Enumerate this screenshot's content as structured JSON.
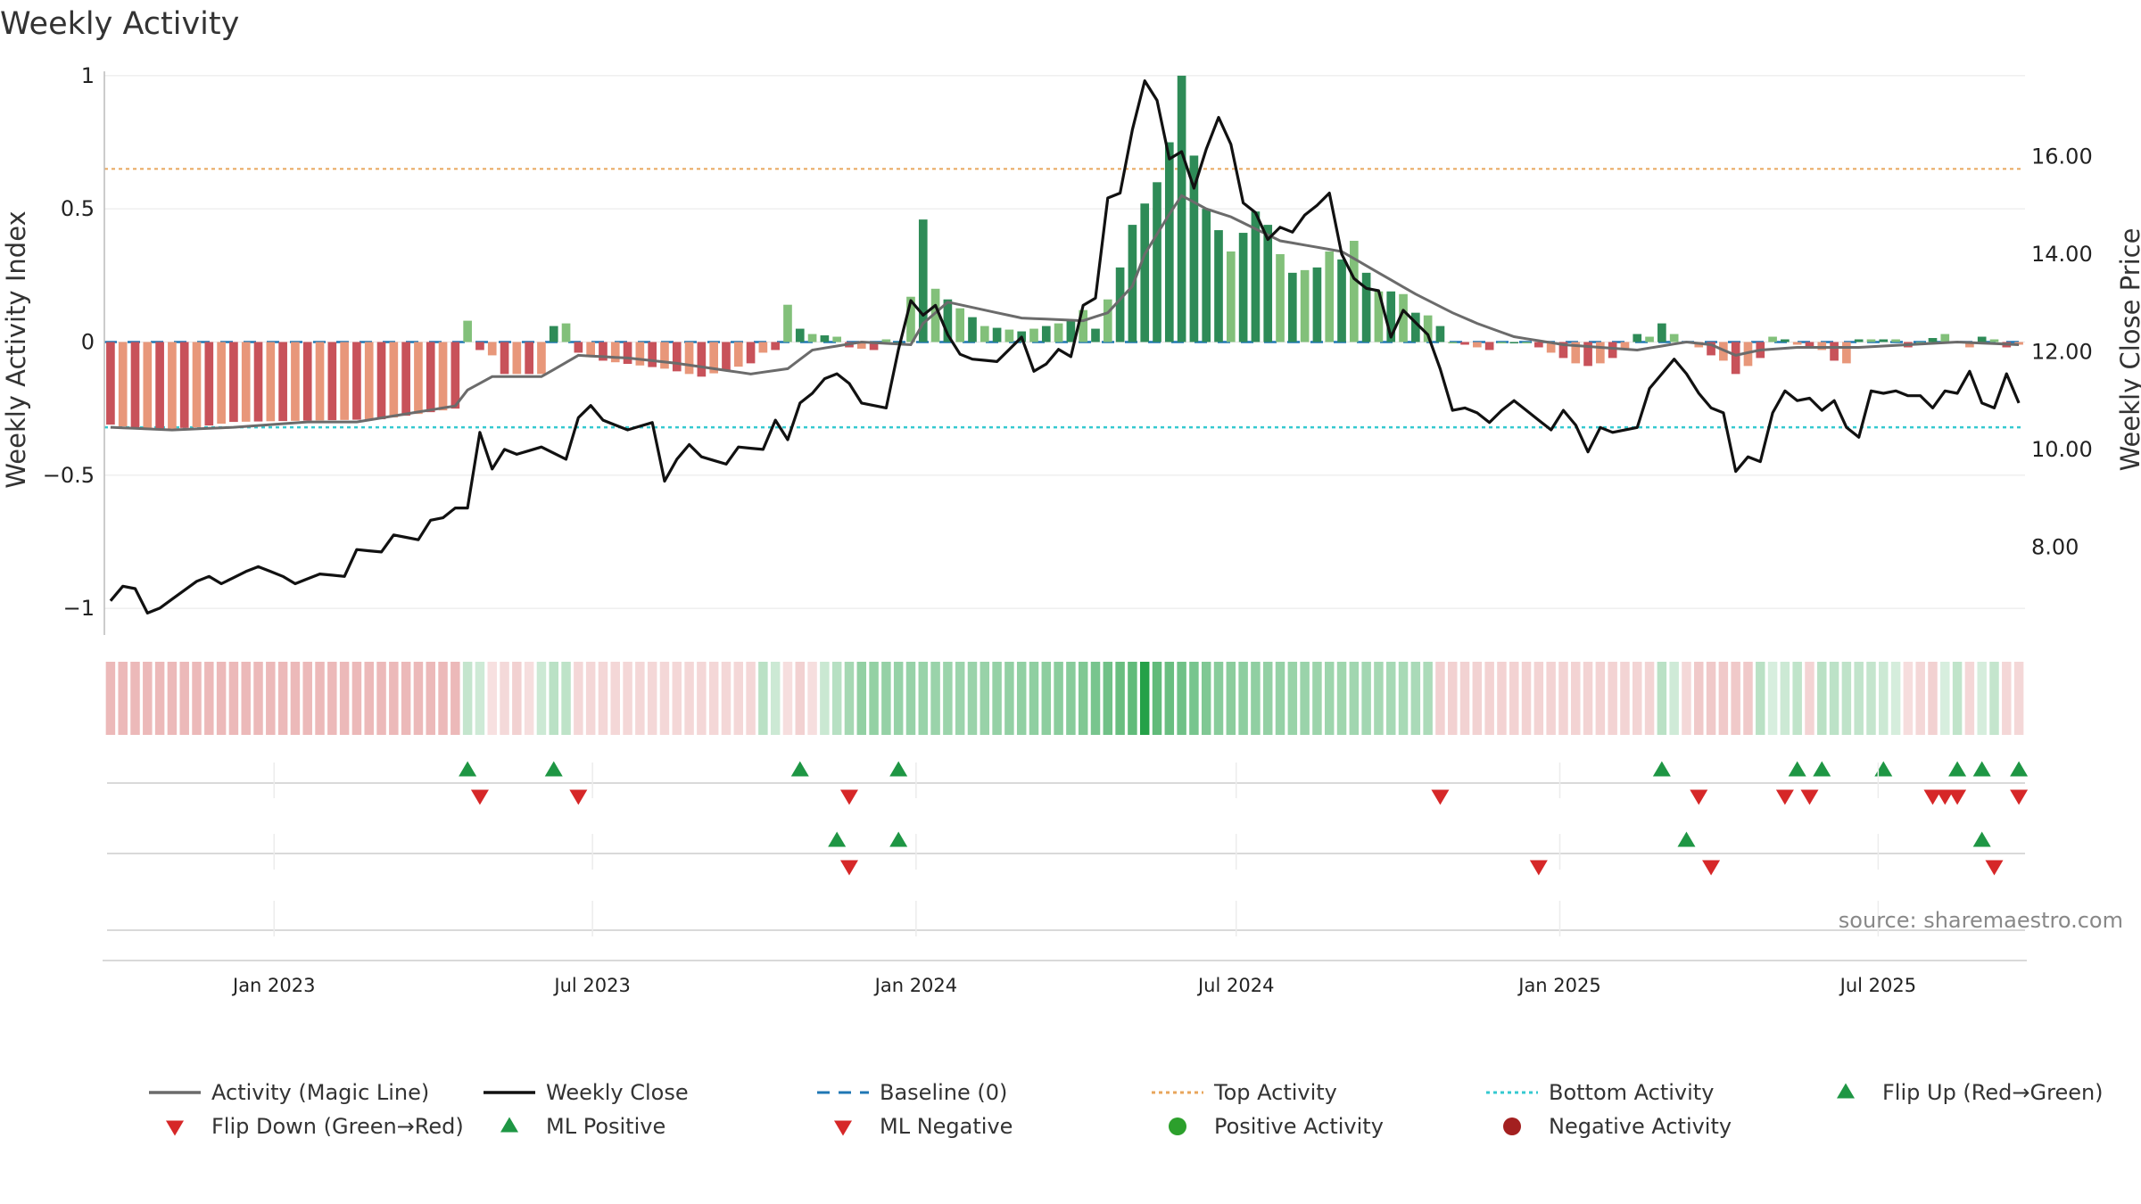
{
  "chart_data": {
    "type": "bar",
    "title": "Weekly Activity",
    "ylabel_left": "Weekly Activity Index",
    "ylabel_right": "Weekly Close Price",
    "source": "source: sharemaestro.com",
    "ylim_left": [
      -1.1,
      1.1
    ],
    "ylim_right": [
      6.2,
      18.2
    ],
    "yticks_left": [
      1,
      0.5,
      0,
      -0.5,
      -1
    ],
    "yticks_left_labels": [
      "1",
      "0.5",
      "0",
      "−0.5",
      "−1"
    ],
    "yticks_right": [
      16,
      14,
      12,
      10,
      8
    ],
    "yticks_right_labels": [
      "16.00",
      "14.00",
      "12.00",
      "10.00",
      "8.00"
    ],
    "x_start": "2022-09-30",
    "x_end": "2025-09-19",
    "week_count": 156,
    "x_tick_labels": [
      {
        "date": "2023-01-01",
        "label": "Jan 2023"
      },
      {
        "date": "2023-07-01",
        "label": "Jul 2023"
      },
      {
        "date": "2024-01-01",
        "label": "Jan 2024"
      },
      {
        "date": "2024-07-01",
        "label": "Jul 2024"
      },
      {
        "date": "2025-01-01",
        "label": "Jan 2025"
      },
      {
        "date": "2025-07-01",
        "label": "Jul 2025"
      }
    ],
    "top_activity": 0.65,
    "bottom_activity": -0.32,
    "baseline": 0,
    "activity_keyframes": [
      [
        0,
        -0.31
      ],
      [
        3,
        -0.33
      ],
      [
        7,
        -0.32
      ],
      [
        10,
        -0.3
      ],
      [
        22,
        -0.29
      ],
      [
        28,
        -0.25
      ],
      [
        29,
        0.08
      ],
      [
        30,
        -0.03
      ],
      [
        31,
        -0.05
      ],
      [
        32,
        -0.12
      ],
      [
        35,
        -0.12
      ],
      [
        36,
        0.06
      ],
      [
        37,
        0.07
      ],
      [
        38,
        -0.04
      ],
      [
        40,
        -0.07
      ],
      [
        45,
        -0.1
      ],
      [
        48,
        -0.13
      ],
      [
        52,
        -0.08
      ],
      [
        53,
        -0.04
      ],
      [
        54,
        -0.03
      ],
      [
        55,
        0.14
      ],
      [
        56,
        0.05
      ],
      [
        57,
        0.03
      ],
      [
        59,
        0.02
      ],
      [
        60,
        -0.02
      ],
      [
        62,
        -0.03
      ],
      [
        63,
        0.01
      ],
      [
        64,
        0.0
      ],
      [
        65,
        0.17
      ],
      [
        66,
        0.46
      ],
      [
        67,
        0.2
      ],
      [
        68,
        0.16
      ],
      [
        71,
        0.06
      ],
      [
        74,
        0.04
      ],
      [
        75,
        0.05
      ],
      [
        78,
        0.08
      ],
      [
        79,
        0.12
      ],
      [
        80,
        0.05
      ],
      [
        81,
        0.16
      ],
      [
        82,
        0.28
      ],
      [
        83,
        0.44
      ],
      [
        84,
        0.52
      ],
      [
        85,
        0.6
      ],
      [
        86,
        0.75
      ],
      [
        87,
        1.0
      ],
      [
        88,
        0.7
      ],
      [
        89,
        0.5
      ],
      [
        90,
        0.42
      ],
      [
        91,
        0.34
      ],
      [
        92,
        0.41
      ],
      [
        93,
        0.49
      ],
      [
        94,
        0.44
      ],
      [
        95,
        0.33
      ],
      [
        96,
        0.26
      ],
      [
        97,
        0.27
      ],
      [
        98,
        0.28
      ],
      [
        99,
        0.34
      ],
      [
        100,
        0.31
      ],
      [
        101,
        0.38
      ],
      [
        102,
        0.26
      ],
      [
        103,
        0.19
      ],
      [
        104,
        0.19
      ],
      [
        105,
        0.18
      ],
      [
        106,
        0.11
      ],
      [
        107,
        0.1
      ],
      [
        108,
        0.06
      ],
      [
        109,
        0.0
      ],
      [
        110,
        -0.01
      ],
      [
        111,
        -0.02
      ],
      [
        112,
        -0.03
      ],
      [
        113,
        0.0
      ],
      [
        115,
        0.0
      ],
      [
        116,
        -0.02
      ],
      [
        117,
        -0.04
      ],
      [
        118,
        -0.06
      ],
      [
        119,
        -0.08
      ],
      [
        120,
        -0.09
      ],
      [
        121,
        -0.08
      ],
      [
        122,
        -0.06
      ],
      [
        123,
        -0.03
      ],
      [
        124,
        0.03
      ],
      [
        125,
        0.02
      ],
      [
        126,
        0.07
      ],
      [
        127,
        0.03
      ],
      [
        128,
        0.0
      ],
      [
        129,
        -0.02
      ],
      [
        130,
        -0.05
      ],
      [
        131,
        -0.07
      ],
      [
        132,
        -0.12
      ],
      [
        133,
        -0.09
      ],
      [
        134,
        -0.06
      ],
      [
        135,
        0.02
      ],
      [
        136,
        0.01
      ],
      [
        137,
        -0.01
      ],
      [
        138,
        -0.02
      ],
      [
        139,
        -0.03
      ],
      [
        140,
        -0.07
      ],
      [
        141,
        -0.08
      ],
      [
        142,
        0.01
      ],
      [
        145,
        0.01
      ],
      [
        146,
        -0.02
      ],
      [
        147,
        0.0
      ],
      [
        149,
        0.03
      ],
      [
        150,
        0.0
      ],
      [
        151,
        -0.02
      ],
      [
        152,
        0.02
      ],
      [
        153,
        0.01
      ],
      [
        154,
        -0.02
      ],
      [
        155,
        -0.01
      ]
    ],
    "magic_line_keyframes": [
      [
        0,
        -0.32
      ],
      [
        5,
        -0.33
      ],
      [
        10,
        -0.32
      ],
      [
        16,
        -0.3
      ],
      [
        20,
        -0.3
      ],
      [
        24,
        -0.27
      ],
      [
        28,
        -0.24
      ],
      [
        29,
        -0.18
      ],
      [
        31,
        -0.13
      ],
      [
        35,
        -0.13
      ],
      [
        38,
        -0.05
      ],
      [
        42,
        -0.06
      ],
      [
        46,
        -0.08
      ],
      [
        52,
        -0.12
      ],
      [
        55,
        -0.1
      ],
      [
        57,
        -0.03
      ],
      [
        61,
        0.0
      ],
      [
        65,
        -0.01
      ],
      [
        66,
        0.07
      ],
      [
        68,
        0.15
      ],
      [
        74,
        0.09
      ],
      [
        79,
        0.08
      ],
      [
        81,
        0.11
      ],
      [
        83,
        0.21
      ],
      [
        84,
        0.33
      ],
      [
        86,
        0.48
      ],
      [
        87,
        0.55
      ],
      [
        89,
        0.5
      ],
      [
        91,
        0.47
      ],
      [
        95,
        0.38
      ],
      [
        100,
        0.34
      ],
      [
        103,
        0.26
      ],
      [
        106,
        0.18
      ],
      [
        109,
        0.11
      ],
      [
        111,
        0.07
      ],
      [
        114,
        0.02
      ],
      [
        118,
        -0.01
      ],
      [
        124,
        -0.03
      ],
      [
        128,
        0.0
      ],
      [
        130,
        -0.01
      ],
      [
        132,
        -0.05
      ],
      [
        134,
        -0.03
      ],
      [
        137,
        -0.02
      ],
      [
        142,
        -0.02
      ],
      [
        146,
        -0.01
      ],
      [
        150,
        0.0
      ],
      [
        155,
        -0.01
      ]
    ],
    "close_keyframes": [
      [
        0,
        6.9
      ],
      [
        1,
        7.2
      ],
      [
        2,
        7.15
      ],
      [
        3,
        6.65
      ],
      [
        4,
        6.75
      ],
      [
        7,
        7.3
      ],
      [
        8,
        7.4
      ],
      [
        9,
        7.25
      ],
      [
        11,
        7.5
      ],
      [
        12,
        7.6
      ],
      [
        14,
        7.4
      ],
      [
        15,
        7.25
      ],
      [
        17,
        7.45
      ],
      [
        19,
        7.4
      ],
      [
        20,
        7.95
      ],
      [
        22,
        7.9
      ],
      [
        23,
        8.25
      ],
      [
        25,
        8.15
      ],
      [
        26,
        8.55
      ],
      [
        27,
        8.6
      ],
      [
        28,
        8.8
      ],
      [
        29,
        8.8
      ],
      [
        30,
        10.35
      ],
      [
        31,
        9.6
      ],
      [
        32,
        10.0
      ],
      [
        33,
        9.9
      ],
      [
        35,
        10.05
      ],
      [
        37,
        9.8
      ],
      [
        38,
        10.65
      ],
      [
        39,
        10.9
      ],
      [
        40,
        10.6
      ],
      [
        42,
        10.4
      ],
      [
        44,
        10.55
      ],
      [
        45,
        9.35
      ],
      [
        46,
        9.8
      ],
      [
        47,
        10.1
      ],
      [
        48,
        9.85
      ],
      [
        50,
        9.7
      ],
      [
        51,
        10.05
      ],
      [
        53,
        10.0
      ],
      [
        54,
        10.6
      ],
      [
        55,
        10.2
      ],
      [
        56,
        10.95
      ],
      [
        57,
        11.15
      ],
      [
        58,
        11.45
      ],
      [
        59,
        11.55
      ],
      [
        60,
        11.35
      ],
      [
        61,
        10.95
      ],
      [
        63,
        10.85
      ],
      [
        64,
        12.05
      ],
      [
        65,
        13.05
      ],
      [
        66,
        12.75
      ],
      [
        67,
        12.95
      ],
      [
        68,
        12.35
      ],
      [
        69,
        11.95
      ],
      [
        70,
        11.85
      ],
      [
        72,
        11.8
      ],
      [
        73,
        12.05
      ],
      [
        74,
        12.3
      ],
      [
        75,
        11.6
      ],
      [
        76,
        11.75
      ],
      [
        77,
        12.05
      ],
      [
        78,
        11.9
      ],
      [
        79,
        12.95
      ],
      [
        80,
        13.1
      ],
      [
        81,
        15.15
      ],
      [
        82,
        15.25
      ],
      [
        83,
        16.55
      ],
      [
        84,
        17.55
      ],
      [
        85,
        17.15
      ],
      [
        86,
        15.95
      ],
      [
        87,
        16.1
      ],
      [
        88,
        15.35
      ],
      [
        89,
        16.15
      ],
      [
        90,
        16.8
      ],
      [
        91,
        16.25
      ],
      [
        92,
        15.05
      ],
      [
        93,
        14.85
      ],
      [
        94,
        14.3
      ],
      [
        95,
        14.55
      ],
      [
        96,
        14.45
      ],
      [
        97,
        14.8
      ],
      [
        98,
        15.0
      ],
      [
        99,
        15.25
      ],
      [
        100,
        14.0
      ],
      [
        101,
        13.5
      ],
      [
        102,
        13.3
      ],
      [
        103,
        13.25
      ],
      [
        104,
        12.3
      ],
      [
        105,
        12.85
      ],
      [
        106,
        12.6
      ],
      [
        107,
        12.35
      ],
      [
        108,
        11.65
      ],
      [
        109,
        10.8
      ],
      [
        110,
        10.85
      ],
      [
        111,
        10.75
      ],
      [
        112,
        10.55
      ],
      [
        113,
        10.8
      ],
      [
        114,
        11.0
      ],
      [
        116,
        10.6
      ],
      [
        117,
        10.4
      ],
      [
        118,
        10.8
      ],
      [
        119,
        10.5
      ],
      [
        120,
        9.95
      ],
      [
        121,
        10.45
      ],
      [
        122,
        10.35
      ],
      [
        124,
        10.45
      ],
      [
        125,
        11.25
      ],
      [
        126,
        11.55
      ],
      [
        127,
        11.85
      ],
      [
        128,
        11.55
      ],
      [
        129,
        11.15
      ],
      [
        130,
        10.85
      ],
      [
        131,
        10.75
      ],
      [
        132,
        9.55
      ],
      [
        133,
        9.85
      ],
      [
        134,
        9.75
      ],
      [
        135,
        10.75
      ],
      [
        136,
        11.2
      ],
      [
        137,
        11.0
      ],
      [
        138,
        11.05
      ],
      [
        139,
        10.8
      ],
      [
        140,
        11.0
      ],
      [
        141,
        10.45
      ],
      [
        142,
        10.25
      ],
      [
        143,
        11.2
      ],
      [
        144,
        11.15
      ],
      [
        145,
        11.2
      ],
      [
        146,
        11.1
      ],
      [
        147,
        11.1
      ],
      [
        148,
        10.85
      ],
      [
        149,
        11.2
      ],
      [
        150,
        11.15
      ],
      [
        151,
        11.6
      ],
      [
        152,
        10.95
      ],
      [
        153,
        10.85
      ],
      [
        154,
        11.55
      ],
      [
        155,
        10.95
      ]
    ],
    "strip_keyframes": [
      [
        0,
        -0.3
      ],
      [
        28,
        -0.3
      ],
      [
        29,
        0.1
      ],
      [
        33,
        -0.12
      ],
      [
        36,
        0.15
      ],
      [
        37,
        0.13
      ],
      [
        38,
        -0.08
      ],
      [
        52,
        -0.08
      ],
      [
        53,
        0.15
      ],
      [
        56,
        -0.12
      ],
      [
        61,
        0.35
      ],
      [
        69,
        0.3
      ],
      [
        78,
        0.4
      ],
      [
        83,
        0.6
      ],
      [
        84,
        0.9
      ],
      [
        85,
        0.6
      ],
      [
        90,
        0.4
      ],
      [
        96,
        0.32
      ],
      [
        107,
        0.22
      ],
      [
        108,
        -0.12
      ],
      [
        125,
        -0.1
      ],
      [
        126,
        0.15
      ],
      [
        129,
        -0.18
      ],
      [
        133,
        -0.18
      ],
      [
        134,
        0.15
      ],
      [
        135,
        0.0
      ],
      [
        137,
        0.12
      ],
      [
        138,
        -0.1
      ],
      [
        139,
        0.15
      ],
      [
        143,
        0.1
      ],
      [
        148,
        -0.12
      ],
      [
        150,
        0.12
      ],
      [
        151,
        -0.08
      ],
      [
        153,
        0.1
      ],
      [
        154,
        -0.08
      ],
      [
        155,
        -0.08
      ]
    ],
    "flip_up_weeks": [
      29,
      36,
      56,
      64,
      126,
      137,
      139,
      144,
      150,
      152,
      155
    ],
    "flip_down_weeks": [
      30,
      38,
      60,
      108,
      129,
      136,
      138,
      148,
      149,
      150,
      155
    ],
    "ml_positive_weeks": [
      59,
      64,
      128,
      152
    ],
    "ml_negative_weeks": [
      60,
      116,
      130,
      153
    ],
    "colors": {
      "strong_green": "#2e8b57",
      "light_green": "#82c07a",
      "strong_red": "#c8525a",
      "light_red": "#e8977a",
      "magic_line": "#6b6b6b",
      "close_line": "#111111",
      "baseline": "#1f77b4",
      "top_activity": "#e8a65c",
      "bottom_activity": "#35c9d0",
      "flip_up": "#1e9644",
      "flip_down": "#d62728",
      "positive_activity": "#2ca02c",
      "negative_activity": "#a32020",
      "grid": "#e6e6e6"
    },
    "legend": [
      {
        "key": "magic_line",
        "label": "Activity (Magic Line)",
        "symbol": "line",
        "color": "#6b6b6b"
      },
      {
        "key": "close",
        "label": "Weekly Close",
        "symbol": "line",
        "color": "#111111"
      },
      {
        "key": "baseline",
        "label": "Baseline (0)",
        "symbol": "dash",
        "color": "#1f77b4"
      },
      {
        "key": "top",
        "label": "Top Activity",
        "symbol": "dot-line",
        "color": "#e8a65c"
      },
      {
        "key": "bottom",
        "label": "Bottom Activity",
        "symbol": "dot-line",
        "color": "#35c9d0"
      },
      {
        "key": "flip_up",
        "label": "Flip Up (Red→Green)",
        "symbol": "triangle-up",
        "color": "#1e9644"
      },
      {
        "key": "flip_down",
        "label": "Flip Down (Green→Red)",
        "symbol": "triangle-down",
        "color": "#d62728"
      },
      {
        "key": "ml_pos",
        "label": "ML Positive",
        "symbol": "triangle-up",
        "color": "#1e9644"
      },
      {
        "key": "ml_neg",
        "label": "ML Negative",
        "symbol": "triangle-down",
        "color": "#d62728"
      },
      {
        "key": "pos_act",
        "label": "Positive Activity",
        "symbol": "circle",
        "color": "#2ca02c"
      },
      {
        "key": "neg_act",
        "label": "Negative Activity",
        "symbol": "circle",
        "color": "#a32020"
      }
    ]
  }
}
